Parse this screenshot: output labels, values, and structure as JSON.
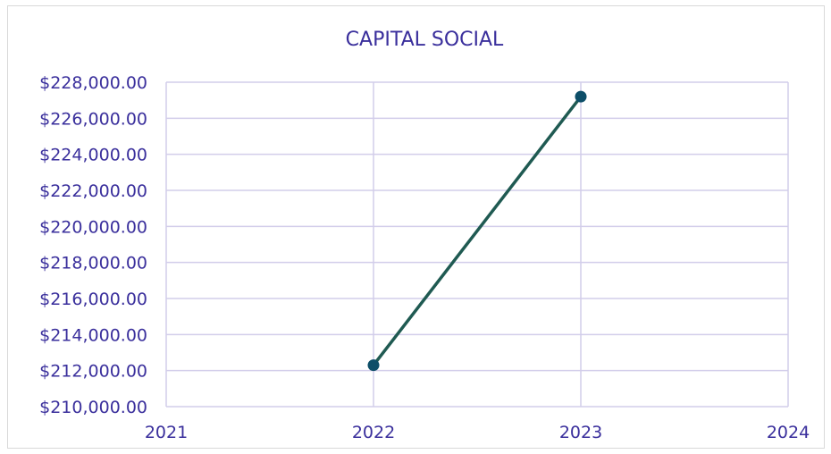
{
  "chart_data": {
    "type": "line",
    "title": "CAPITAL SOCIAL",
    "xlabel": "",
    "ylabel": "",
    "xlim": [
      2021,
      2024
    ],
    "ylim": [
      210000,
      228000
    ],
    "x_ticks": [
      2021,
      2022,
      2023,
      2024
    ],
    "x_tick_labels": [
      "2021",
      "2022",
      "2023",
      "2024"
    ],
    "y_ticks": [
      210000,
      212000,
      214000,
      216000,
      218000,
      220000,
      222000,
      224000,
      226000,
      228000
    ],
    "y_tick_labels": [
      "$210,000.00",
      "$212,000.00",
      "$214,000.00",
      "$216,000.00",
      "$218,000.00",
      "$220,000.00",
      "$222,000.00",
      "$224,000.00",
      "$226,000.00",
      "$228,000.00"
    ],
    "grid": true,
    "legend": "none",
    "series": [
      {
        "x": [
          2022,
          2023
        ],
        "y": [
          212300,
          227200
        ]
      }
    ],
    "colors": {
      "line": "#1f5a52",
      "marker": "#0d4e68",
      "grid": "#d2cdea",
      "text": "#3a2f9c"
    }
  }
}
